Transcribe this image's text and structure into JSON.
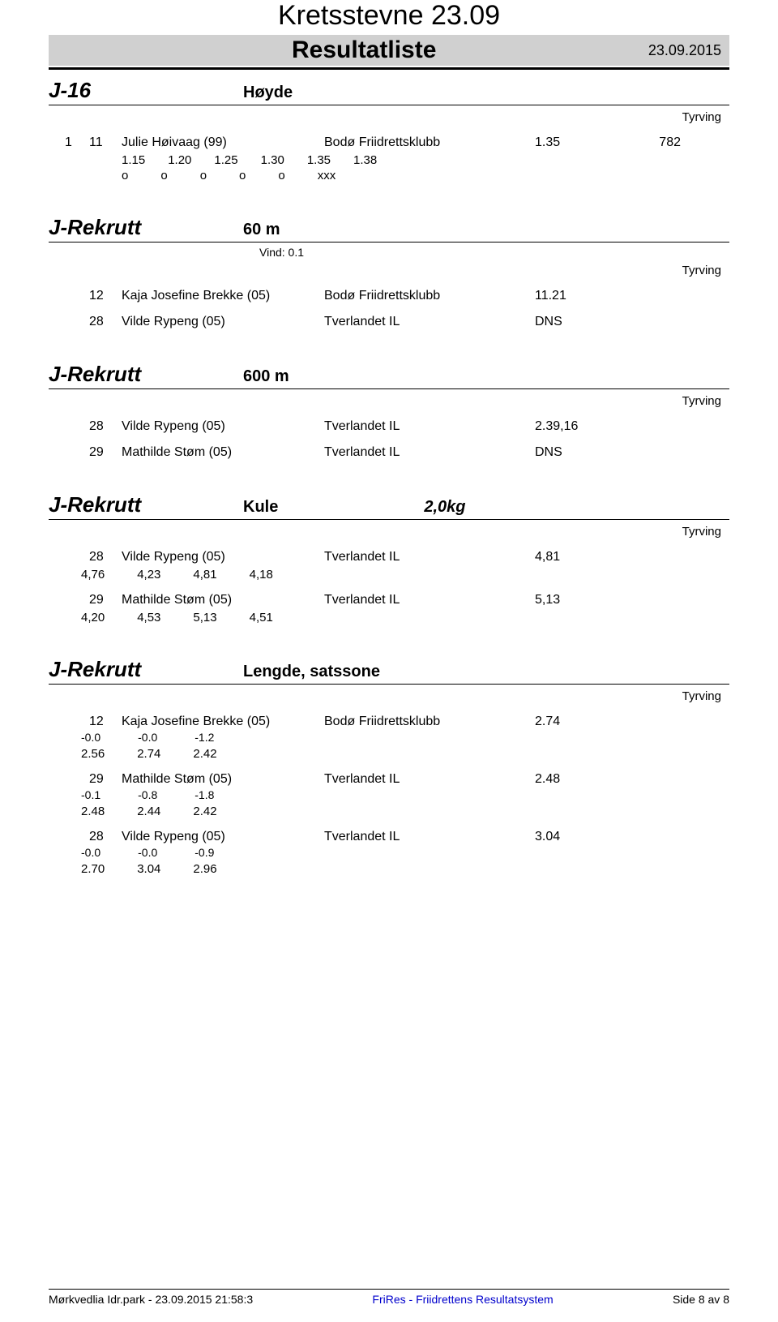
{
  "header": {
    "title": "Kretsstevne 23.09",
    "subtitle": "Resultatliste",
    "date": "23.09.2015"
  },
  "tyrving_label": "Tyrving",
  "sections": [
    {
      "category": "J-16",
      "event": "Høyde",
      "results": [
        {
          "place": "1",
          "bib": "11",
          "name": "Julie Høivaag (99)",
          "club": "Bodø Friidrettsklubb",
          "result": "1.35",
          "points": "782",
          "heights": [
            "1.15",
            "1.20",
            "1.25",
            "1.30",
            "1.35",
            "1.38"
          ],
          "marks": [
            "o",
            "o",
            "o",
            "o",
            "o",
            "xxx"
          ]
        }
      ]
    },
    {
      "category": "J-Rekrutt",
      "event": "60 m",
      "wind": "Vind: 0.1",
      "results": [
        {
          "place": "",
          "bib": "12",
          "name": "Kaja Josefine Brekke (05)",
          "club": "Bodø Friidrettsklubb",
          "result": "11.21"
        },
        {
          "place": "",
          "bib": "28",
          "name": "Vilde Rypeng (05)",
          "club": "Tverlandet IL",
          "result": "DNS"
        }
      ]
    },
    {
      "category": "J-Rekrutt",
      "event": "600 m",
      "results": [
        {
          "place": "",
          "bib": "28",
          "name": "Vilde Rypeng (05)",
          "club": "Tverlandet IL",
          "result": "2.39,16"
        },
        {
          "place": "",
          "bib": "29",
          "name": "Mathilde Støm (05)",
          "club": "Tverlandet IL",
          "result": "DNS"
        }
      ]
    },
    {
      "category": "J-Rekrutt",
      "event": "Kule",
      "weight": "2,0kg",
      "results": [
        {
          "place": "",
          "bib": "28",
          "name": "Vilde Rypeng (05)",
          "club": "Tverlandet IL",
          "result": "4,81",
          "series": [
            "4,76",
            "4,23",
            "4,81",
            "4,18"
          ]
        },
        {
          "place": "",
          "bib": "29",
          "name": "Mathilde Støm (05)",
          "club": "Tverlandet IL",
          "result": "5,13",
          "series": [
            "4,20",
            "4,53",
            "5,13",
            "4,51"
          ]
        }
      ]
    },
    {
      "category": "J-Rekrutt",
      "event": "Lengde, satssone",
      "results": [
        {
          "place": "",
          "bib": "12",
          "name": "Kaja Josefine Brekke (05)",
          "club": "Bodø Friidrettsklubb",
          "result": "2.74",
          "winds": [
            "-0.0",
            "-0.0",
            "-1.2"
          ],
          "series": [
            "2.56",
            "2.74",
            "2.42"
          ]
        },
        {
          "place": "",
          "bib": "29",
          "name": "Mathilde Støm (05)",
          "club": "Tverlandet IL",
          "result": "2.48",
          "winds": [
            "-0.1",
            "-0.8",
            "-1.8"
          ],
          "series": [
            "2.48",
            "2.44",
            "2.42"
          ]
        },
        {
          "place": "",
          "bib": "28",
          "name": "Vilde Rypeng (05)",
          "club": "Tverlandet IL",
          "result": "3.04",
          "winds": [
            "-0.0",
            "-0.0",
            "-0.9"
          ],
          "series": [
            "2.70",
            "3.04",
            "2.96"
          ]
        }
      ]
    }
  ],
  "footer": {
    "left": "Mørkvedlia Idr.park - 23.09.2015 21:58:3",
    "middle": "FriRes - Friidrettens Resultatsystem",
    "right": "Side 8 av 8"
  }
}
